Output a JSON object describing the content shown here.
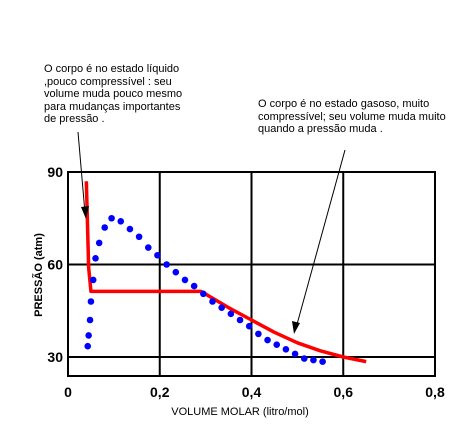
{
  "chart_data": {
    "type": "line",
    "xlabel": "VOLUME MOLAR (litro/mol)",
    "ylabel": "PRESSÃO (atm)",
    "xlim": [
      0,
      0.8
    ],
    "ylim": [
      30,
      90
    ],
    "x_ticks": [
      "0",
      "0,2",
      "0,4",
      "0,6",
      "0,8"
    ],
    "y_ticks": [
      "30",
      "60",
      "90"
    ],
    "grid": true,
    "series": [
      {
        "color": "#ff0000",
        "style": "solid",
        "x": [
          0.04,
          0.045,
          0.05,
          0.1,
          0.2,
          0.29,
          0.35,
          0.4,
          0.45,
          0.5,
          0.55,
          0.6,
          0.65
        ],
        "y": [
          87,
          59,
          51.3,
          51.3,
          51.3,
          51.3,
          46,
          42,
          38,
          34.6,
          32,
          30,
          28.5
        ]
      },
      {
        "color": "#0000ff",
        "style": "dotted",
        "x": [
          0.043,
          0.045,
          0.048,
          0.05,
          0.055,
          0.06,
          0.068,
          0.08,
          0.095,
          0.115,
          0.135,
          0.155,
          0.175,
          0.195,
          0.215,
          0.235,
          0.255,
          0.275,
          0.295,
          0.315,
          0.335,
          0.355,
          0.375,
          0.395,
          0.415,
          0.435,
          0.455,
          0.475,
          0.495,
          0.515,
          0.535,
          0.555
        ],
        "y": [
          33.5,
          37,
          42,
          48,
          55,
          62,
          67,
          72,
          75,
          74,
          71.5,
          69,
          65.5,
          63,
          60,
          57.5,
          55,
          53,
          50.5,
          48,
          46,
          44,
          42,
          40,
          37.5,
          35.5,
          34,
          32.5,
          31,
          29.5,
          29,
          28.5
        ]
      }
    ],
    "annotations": [
      "O corpo é no estado líquido\n,pouco compressível : seu\nvolume muda pouco mesmo\npara mudanças importantes\nde pressão .",
      "O corpo é no estado gasoso, muito\ncompressível; seu volume muda muito\nquando a pressão muda ."
    ]
  }
}
